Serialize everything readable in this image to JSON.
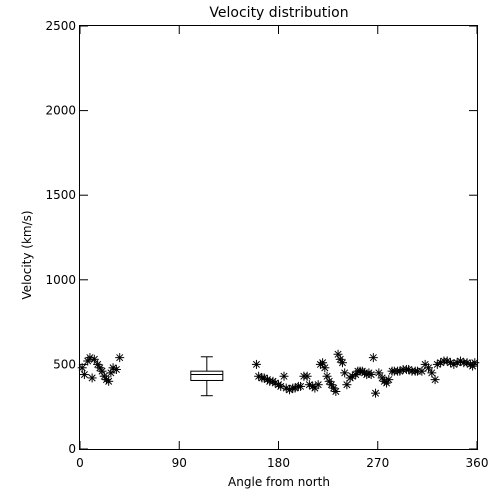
{
  "chart_data": {
    "type": "scatter",
    "title": "Velocity distribution",
    "xlabel": "Angle from north",
    "ylabel": "Velocity (km/s)",
    "xlim": [
      0,
      360
    ],
    "ylim": [
      0,
      2500
    ],
    "xticks": [
      0,
      90,
      180,
      270,
      360
    ],
    "xtick_labels": [
      "0",
      "90",
      "180",
      "270",
      "360"
    ],
    "yticks": [
      0,
      500,
      1000,
      1500,
      2000,
      2500
    ],
    "ytick_labels": [
      "0",
      "500",
      "1000",
      "1500",
      "2000",
      "2500"
    ],
    "marker": "asterisk",
    "grid": false,
    "points": [
      [
        2,
        480
      ],
      [
        4,
        440
      ],
      [
        7,
        520
      ],
      [
        9,
        540
      ],
      [
        11,
        420
      ],
      [
        13,
        530
      ],
      [
        16,
        500
      ],
      [
        18,
        480
      ],
      [
        20,
        460
      ],
      [
        22,
        430
      ],
      [
        24,
        410
      ],
      [
        26,
        400
      ],
      [
        28,
        450
      ],
      [
        30,
        480
      ],
      [
        33,
        470
      ],
      [
        36,
        540
      ],
      [
        160,
        500
      ],
      [
        162,
        430
      ],
      [
        165,
        420
      ],
      [
        167,
        420
      ],
      [
        170,
        410
      ],
      [
        172,
        400
      ],
      [
        175,
        400
      ],
      [
        177,
        390
      ],
      [
        180,
        380
      ],
      [
        182,
        370
      ],
      [
        185,
        430
      ],
      [
        187,
        360
      ],
      [
        190,
        350
      ],
      [
        193,
        360
      ],
      [
        195,
        360
      ],
      [
        198,
        370
      ],
      [
        200,
        370
      ],
      [
        203,
        430
      ],
      [
        206,
        430
      ],
      [
        208,
        380
      ],
      [
        211,
        370
      ],
      [
        213,
        360
      ],
      [
        216,
        380
      ],
      [
        218,
        500
      ],
      [
        220,
        510
      ],
      [
        222,
        480
      ],
      [
        224,
        430
      ],
      [
        226,
        400
      ],
      [
        228,
        380
      ],
      [
        230,
        360
      ],
      [
        232,
        340
      ],
      [
        234,
        560
      ],
      [
        236,
        530
      ],
      [
        238,
        510
      ],
      [
        240,
        450
      ],
      [
        242,
        380
      ],
      [
        245,
        420
      ],
      [
        247,
        430
      ],
      [
        250,
        440
      ],
      [
        252,
        460
      ],
      [
        254,
        460
      ],
      [
        256,
        460
      ],
      [
        258,
        450
      ],
      [
        260,
        440
      ],
      [
        262,
        450
      ],
      [
        264,
        440
      ],
      [
        266,
        540
      ],
      [
        268,
        330
      ],
      [
        271,
        450
      ],
      [
        274,
        420
      ],
      [
        276,
        400
      ],
      [
        278,
        390
      ],
      [
        280,
        410
      ],
      [
        283,
        460
      ],
      [
        285,
        460
      ],
      [
        288,
        460
      ],
      [
        290,
        460
      ],
      [
        293,
        470
      ],
      [
        296,
        470
      ],
      [
        298,
        470
      ],
      [
        301,
        460
      ],
      [
        304,
        460
      ],
      [
        306,
        460
      ],
      [
        310,
        460
      ],
      [
        313,
        500
      ],
      [
        316,
        480
      ],
      [
        319,
        450
      ],
      [
        322,
        410
      ],
      [
        324,
        500
      ],
      [
        327,
        510
      ],
      [
        330,
        520
      ],
      [
        333,
        520
      ],
      [
        336,
        510
      ],
      [
        339,
        500
      ],
      [
        342,
        510
      ],
      [
        345,
        520
      ],
      [
        348,
        510
      ],
      [
        351,
        510
      ],
      [
        354,
        500
      ],
      [
        356,
        490
      ],
      [
        358,
        510
      ]
    ],
    "boxplot": {
      "x": 115,
      "whisker_low": 315,
      "q1": 405,
      "median": 440,
      "q3": 460,
      "whisker_high": 545
    }
  }
}
